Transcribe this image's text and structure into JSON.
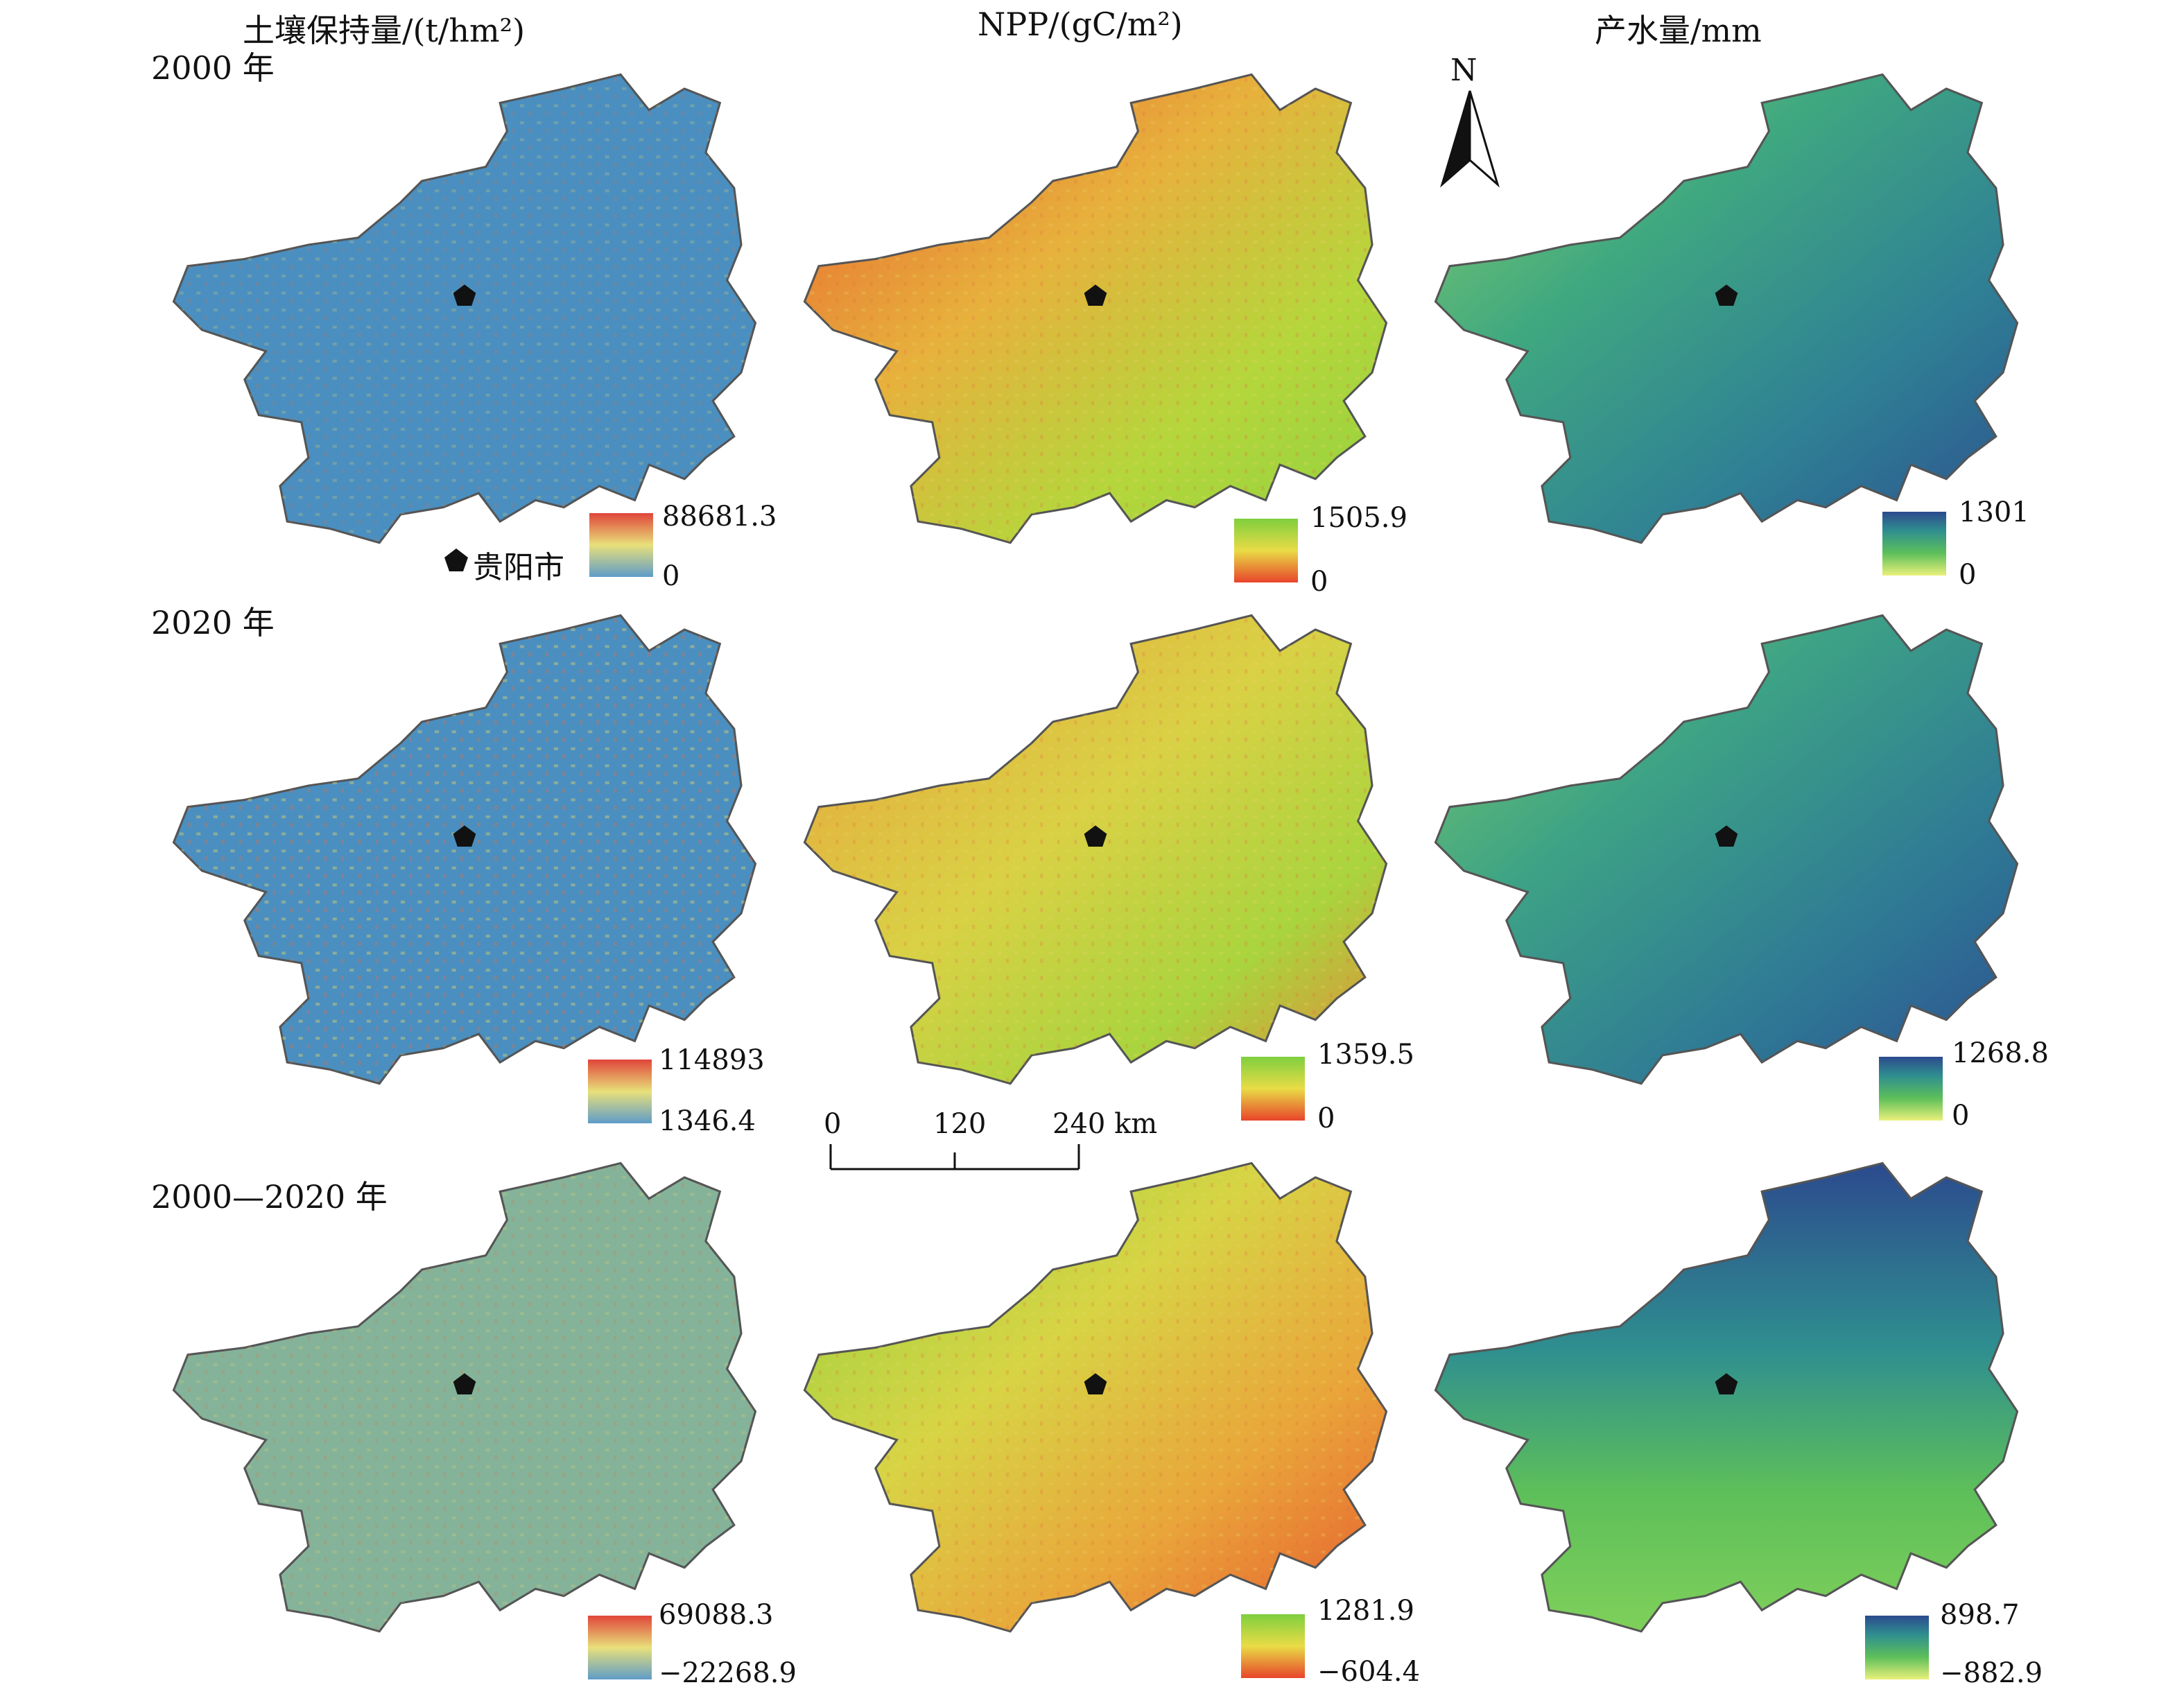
{
  "columns": [
    {
      "title": "土壤保持量/(t/hm²)"
    },
    {
      "title": "NPP/(gC/m²)"
    },
    {
      "title": "产水量/mm"
    }
  ],
  "rows": [
    {
      "label": "2000 年"
    },
    {
      "label": "2020 年"
    },
    {
      "label": "2000—2020 年"
    }
  ],
  "legends": [
    [
      {
        "max": "88681.3",
        "min": "0"
      },
      {
        "max": "1505.9",
        "min": "0"
      },
      {
        "max": "1301",
        "min": "0"
      }
    ],
    [
      {
        "max": "114893",
        "min": "1346.4"
      },
      {
        "max": "1359.5",
        "min": "0"
      },
      {
        "max": "1268.8",
        "min": "0"
      }
    ],
    [
      {
        "max": "69088.3",
        "min": "−22268.9"
      },
      {
        "max": "1281.9",
        "min": "−604.4"
      },
      {
        "max": "898.7",
        "min": "−882.9"
      }
    ]
  ],
  "marker_legend": {
    "label": "贵阳市",
    "icon": "pentagon-icon"
  },
  "north_arrow": {
    "label": "N"
  },
  "scale_bar": {
    "ticks": [
      "0",
      "120",
      "240 km"
    ]
  },
  "colors": {
    "soil_base": "#4a8fc0",
    "soil_diff_base": "#84b39a",
    "npp_red": "#e8442a",
    "npp_yellow": "#e9dc46",
    "npp_green": "#7fcf3e",
    "water_navy": "#2c4a8e",
    "water_teal": "#2f8f8f",
    "water_green": "#5dbf5a",
    "water_yellow": "#e6f07a",
    "outline": "#555555"
  }
}
